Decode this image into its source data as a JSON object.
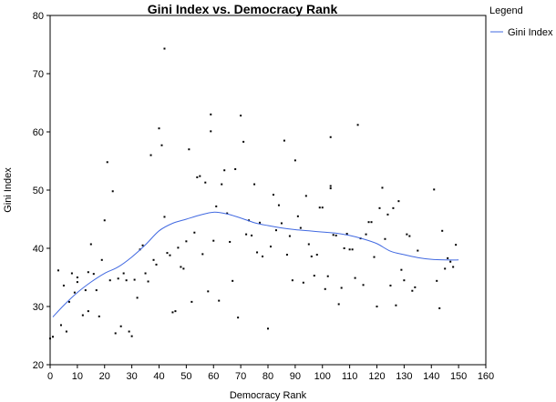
{
  "chart_data": {
    "type": "scatter",
    "title": "Gini Index vs. Democracy Rank",
    "xlabel": "Democracy Rank",
    "ylabel": "Gini Index",
    "xlim": [
      0,
      160
    ],
    "ylim": [
      20,
      80
    ],
    "xticks": [
      "0",
      "10",
      "20",
      "30",
      "40",
      "50",
      "60",
      "70",
      "80",
      "90",
      "100",
      "110",
      "120",
      "130",
      "140",
      "150",
      "160"
    ],
    "yticks": [
      "20",
      "30",
      "40",
      "50",
      "60",
      "70",
      "80"
    ],
    "grid": false,
    "legend": {
      "title": "Legend",
      "placement": "top-right",
      "entries": [
        {
          "label": "Gini Index",
          "color": "#4169e1"
        }
      ]
    },
    "points_color": "#000000",
    "points": [
      [
        0,
        24.5
      ],
      [
        1,
        24.8
      ],
      [
        3,
        36.2
      ],
      [
        4,
        26.8
      ],
      [
        5,
        33.6
      ],
      [
        6,
        25.7
      ],
      [
        7,
        30.8
      ],
      [
        8,
        35.7
      ],
      [
        9,
        32.4
      ],
      [
        10,
        35
      ],
      [
        10,
        34.2
      ],
      [
        12,
        28.5
      ],
      [
        13,
        32.8
      ],
      [
        14,
        29.2
      ],
      [
        14,
        35.9
      ],
      [
        15,
        40.7
      ],
      [
        16,
        35.6
      ],
      [
        17,
        32.8
      ],
      [
        18,
        28.3
      ],
      [
        19,
        38
      ],
      [
        20,
        44.8
      ],
      [
        21,
        54.8
      ],
      [
        22,
        34.5
      ],
      [
        23,
        49.8
      ],
      [
        24,
        25.4
      ],
      [
        25,
        34.8
      ],
      [
        26,
        26.6
      ],
      [
        27,
        35.7
      ],
      [
        28,
        34.5
      ],
      [
        29,
        25.7
      ],
      [
        30,
        24.9
      ],
      [
        31,
        34.6
      ],
      [
        32,
        31.5
      ],
      [
        33,
        39.8
      ],
      [
        34,
        40.5
      ],
      [
        35,
        35.7
      ],
      [
        36,
        34.3
      ],
      [
        37,
        56
      ],
      [
        38,
        38
      ],
      [
        39,
        37.2
      ],
      [
        40,
        60.6
      ],
      [
        41,
        57.7
      ],
      [
        42,
        74.3
      ],
      [
        42,
        45.4
      ],
      [
        43,
        39.2
      ],
      [
        44,
        38.8
      ],
      [
        45,
        29
      ],
      [
        46,
        29.2
      ],
      [
        47,
        40.1
      ],
      [
        48,
        36.8
      ],
      [
        49,
        36.5
      ],
      [
        50,
        41.2
      ],
      [
        51,
        57
      ],
      [
        52,
        30.8
      ],
      [
        53,
        42.7
      ],
      [
        54,
        52.2
      ],
      [
        55,
        52.4
      ],
      [
        56,
        39
      ],
      [
        57,
        51.3
      ],
      [
        58,
        32.6
      ],
      [
        59,
        60.1
      ],
      [
        59,
        63
      ],
      [
        60,
        41.3
      ],
      [
        61,
        47.2
      ],
      [
        62,
        31
      ],
      [
        63,
        51
      ],
      [
        64,
        53.4
      ],
      [
        65,
        46
      ],
      [
        66,
        41.1
      ],
      [
        67,
        34.4
      ],
      [
        68,
        53.6
      ],
      [
        69,
        28.1
      ],
      [
        70,
        62.8
      ],
      [
        71,
        58.3
      ],
      [
        72,
        42.4
      ],
      [
        73,
        44.8
      ],
      [
        74,
        42.2
      ],
      [
        75,
        51
      ],
      [
        76,
        39.3
      ],
      [
        77,
        44.4
      ],
      [
        78,
        38.6
      ],
      [
        80,
        26.2
      ],
      [
        81,
        40.3
      ],
      [
        82,
        49.2
      ],
      [
        83,
        43.1
      ],
      [
        84,
        47.4
      ],
      [
        85,
        44.3
      ],
      [
        86,
        58.5
      ],
      [
        87,
        38.9
      ],
      [
        88,
        42.1
      ],
      [
        89,
        34.5
      ],
      [
        90,
        55.1
      ],
      [
        91,
        45.5
      ],
      [
        92,
        43.5
      ],
      [
        93,
        34.1
      ],
      [
        94,
        49
      ],
      [
        95,
        40.7
      ],
      [
        96,
        38.6
      ],
      [
        97,
        35.3
      ],
      [
        98,
        38.9
      ],
      [
        99,
        47
      ],
      [
        100,
        47
      ],
      [
        101,
        33
      ],
      [
        102,
        35.2
      ],
      [
        103,
        59.1
      ],
      [
        103,
        50.7
      ],
      [
        103,
        50.3
      ],
      [
        104,
        42.3
      ],
      [
        105,
        42.2
      ],
      [
        106,
        30.4
      ],
      [
        107,
        33.2
      ],
      [
        108,
        40
      ],
      [
        109,
        42.5
      ],
      [
        110,
        39.8
      ],
      [
        111,
        39.8
      ],
      [
        112,
        34.9
      ],
      [
        113,
        61.2
      ],
      [
        114,
        41.7
      ],
      [
        115,
        33.7
      ],
      [
        116,
        42.4
      ],
      [
        117,
        44.5
      ],
      [
        118,
        44.5
      ],
      [
        119,
        38.5
      ],
      [
        120,
        30
      ],
      [
        121,
        46.9
      ],
      [
        122,
        50.4
      ],
      [
        123,
        41.6
      ],
      [
        124,
        45.8
      ],
      [
        125,
        33.6
      ],
      [
        126,
        46.9
      ],
      [
        127,
        30.2
      ],
      [
        128,
        48.1
      ],
      [
        129,
        36.3
      ],
      [
        130,
        34.5
      ],
      [
        131,
        42.4
      ],
      [
        132,
        42.1
      ],
      [
        133,
        32.7
      ],
      [
        134,
        33.3
      ],
      [
        135,
        39.6
      ],
      [
        141,
        50.1
      ],
      [
        142,
        34.4
      ],
      [
        143,
        29.7
      ],
      [
        144,
        43
      ],
      [
        145,
        36.5
      ],
      [
        146,
        38.3
      ],
      [
        147,
        37.7
      ],
      [
        148,
        36.8
      ],
      [
        149,
        40.6
      ]
    ],
    "trend_line": [
      [
        1,
        28.2
      ],
      [
        5,
        30.2
      ],
      [
        10,
        32.4
      ],
      [
        15,
        34.2
      ],
      [
        20,
        35.7
      ],
      [
        25,
        36.8
      ],
      [
        30,
        38.5
      ],
      [
        35,
        40.6
      ],
      [
        40,
        43
      ],
      [
        45,
        44.3
      ],
      [
        50,
        45
      ],
      [
        55,
        45.7
      ],
      [
        60,
        46.2
      ],
      [
        65,
        45.9
      ],
      [
        70,
        45.2
      ],
      [
        75,
        44.4
      ],
      [
        80,
        43.9
      ],
      [
        85,
        43.5
      ],
      [
        90,
        43.2
      ],
      [
        95,
        43
      ],
      [
        100,
        42.8
      ],
      [
        105,
        42.6
      ],
      [
        110,
        42.2
      ],
      [
        115,
        41.6
      ],
      [
        120,
        40.8
      ],
      [
        125,
        39.5
      ],
      [
        130,
        38.9
      ],
      [
        135,
        38.4
      ],
      [
        140,
        38.1
      ],
      [
        145,
        38
      ],
      [
        150,
        38
      ]
    ]
  }
}
